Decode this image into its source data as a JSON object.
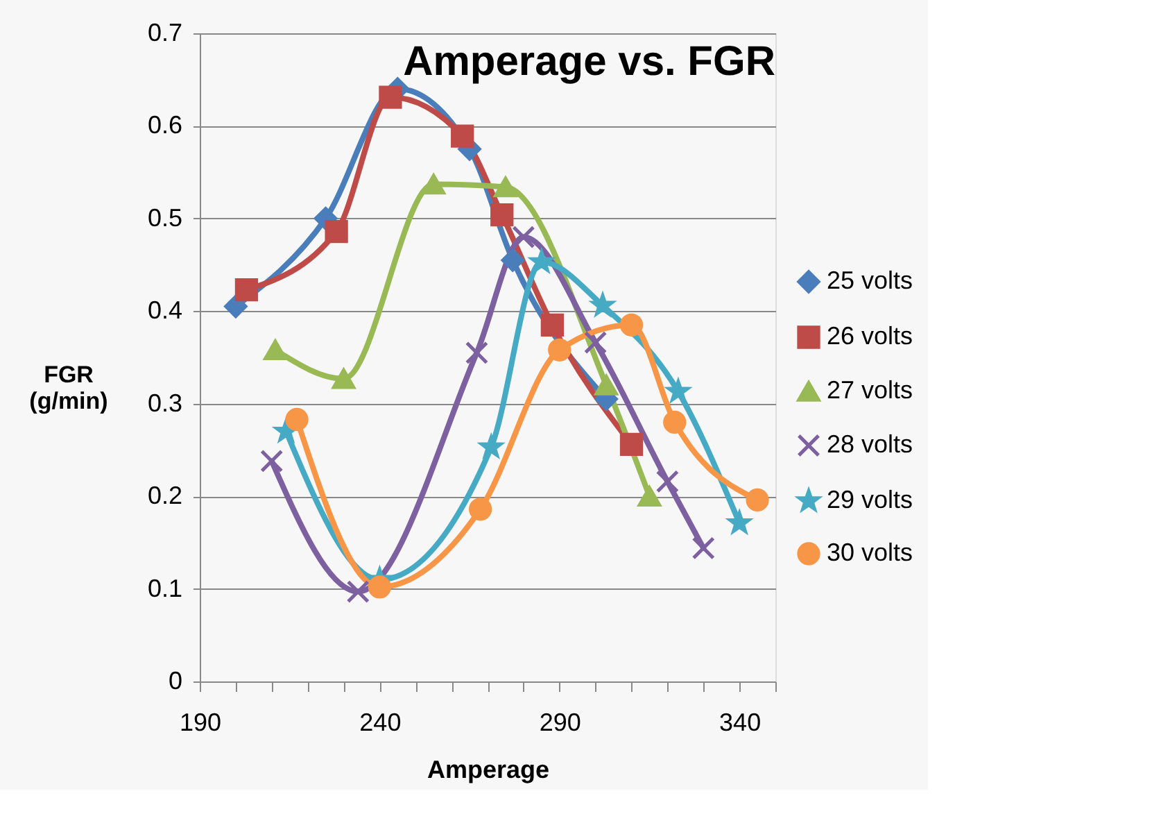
{
  "chart_data": {
    "type": "line",
    "title": "Amperage vs. FGR",
    "xlabel": "Amperage",
    "ylabel": "FGR (g/min)",
    "xlim": [
      190,
      350
    ],
    "xticks": [
      190,
      {
        "value": 200,
        "label": null
      },
      {
        "value": 210,
        "label": null
      },
      {
        "value": 220,
        "label": null
      },
      {
        "value": 230,
        "label": null
      },
      240,
      {
        "value": 250,
        "label": null
      },
      {
        "value": 260,
        "label": null
      },
      {
        "value": 270,
        "label": null
      },
      {
        "value": 280,
        "label": null
      },
      290,
      {
        "value": 300,
        "label": null
      },
      {
        "value": 310,
        "label": null
      },
      {
        "value": 320,
        "label": null
      },
      {
        "value": 330,
        "label": null
      },
      340,
      {
        "value": 350,
        "label": null
      }
    ],
    "ylim": [
      0,
      0.7
    ],
    "yticks": [
      0,
      0.1,
      0.2,
      0.3,
      0.4,
      0.5,
      0.6,
      0.7
    ],
    "grid": "y",
    "legend": "right",
    "series": [
      {
        "name": "25 volts",
        "color": "#4a7ebb",
        "marker": "diamond",
        "x": [
          200,
          225,
          245,
          265,
          277,
          303
        ],
        "values": [
          0.405,
          0.5,
          0.64,
          0.575,
          0.455,
          0.305
        ]
      },
      {
        "name": "26 volts",
        "color": "#be4b48",
        "marker": "square",
        "x": [
          203,
          228,
          243,
          263,
          274,
          288,
          310
        ],
        "values": [
          0.423,
          0.486,
          0.631,
          0.589,
          0.504,
          0.385,
          0.256
        ]
      },
      {
        "name": "27 volts",
        "color": "#98b954",
        "marker": "triangle",
        "x": [
          211,
          230,
          255,
          275,
          303,
          315
        ],
        "values": [
          0.358,
          0.327,
          0.537,
          0.534,
          0.32,
          0.2
        ]
      },
      {
        "name": "28 volts",
        "color": "#7d60a0",
        "marker": "cross",
        "x": [
          210,
          234,
          267,
          280,
          300,
          320,
          330
        ],
        "values": [
          0.238,
          0.097,
          0.355,
          0.48,
          0.366,
          0.216,
          0.144
        ]
      },
      {
        "name": "29 volts",
        "color": "#46aac5",
        "marker": "star",
        "x": [
          214,
          240,
          271,
          285,
          302,
          323,
          340
        ],
        "values": [
          0.27,
          0.11,
          0.253,
          0.453,
          0.406,
          0.313,
          0.171
        ]
      },
      {
        "name": "30 volts",
        "color": "#f79646",
        "marker": "circle",
        "x": [
          217,
          240,
          268,
          290,
          310,
          322,
          345
        ],
        "values": [
          0.283,
          0.102,
          0.186,
          0.358,
          0.385,
          0.28,
          0.196
        ]
      }
    ]
  }
}
